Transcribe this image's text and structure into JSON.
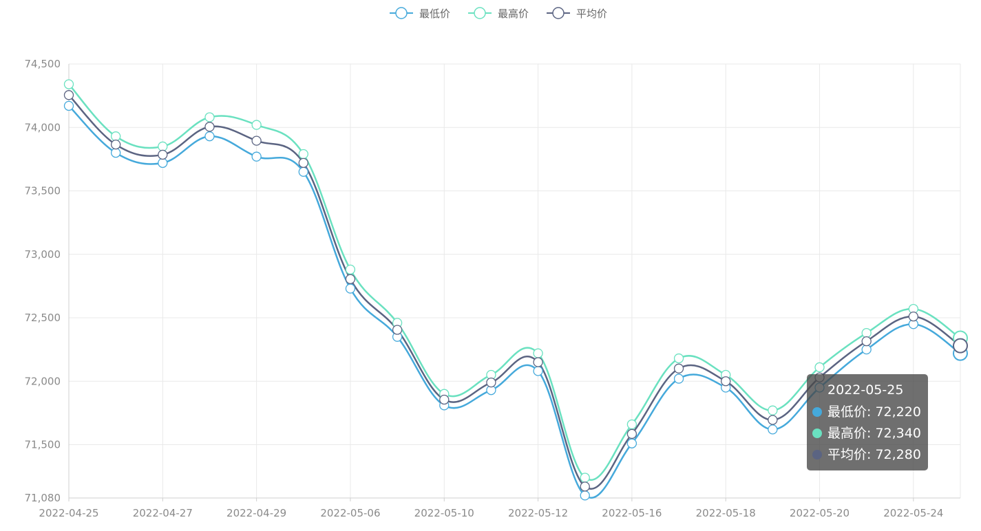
{
  "legend": {
    "items": [
      {
        "label": "最低价",
        "color": "#45a9db"
      },
      {
        "label": "最高价",
        "color": "#6ae1c0"
      },
      {
        "label": "平均价",
        "color": "#5b6482"
      }
    ]
  },
  "tooltip": {
    "date": "2022-05-25",
    "rows": [
      {
        "text": "最低价: 72,220",
        "color": "#45a9db"
      },
      {
        "text": "最高价: 72,340",
        "color": "#6ae1c0"
      },
      {
        "text": "平均价: 72,280",
        "color": "#5b6482"
      }
    ]
  },
  "chart_data": {
    "type": "line",
    "smooth": true,
    "grid": true,
    "legend_position": "top-center",
    "ylim": [
      71080,
      74500
    ],
    "yticks": [
      71080,
      71500,
      72000,
      72500,
      73000,
      73500,
      74000,
      74500
    ],
    "ytick_labels": [
      "71,080",
      "71,500",
      "72,000",
      "72,500",
      "73,000",
      "73,500",
      "74,000",
      "74,500"
    ],
    "x": [
      "2022-04-25",
      "2022-04-26",
      "2022-04-27",
      "2022-04-28",
      "2022-04-29",
      "2022-05-05",
      "2022-05-06",
      "2022-05-09",
      "2022-05-10",
      "2022-05-11",
      "2022-05-12",
      "2022-05-13",
      "2022-05-16",
      "2022-05-17",
      "2022-05-18",
      "2022-05-19",
      "2022-05-20",
      "2022-05-23",
      "2022-05-24",
      "2022-05-25"
    ],
    "xtick_labels_shown": [
      "2022-04-25",
      "2022-04-27",
      "2022-04-29",
      "2022-05-06",
      "2022-05-10",
      "2022-05-12",
      "2022-05-16",
      "2022-05-18",
      "2022-05-20",
      "2022-05-24"
    ],
    "series": [
      {
        "name": "最低价",
        "color": "#45a9db",
        "values": [
          74170,
          73800,
          73720,
          73930,
          73770,
          73650,
          72730,
          72350,
          71810,
          71930,
          72080,
          71100,
          71510,
          72020,
          71950,
          71620,
          71950,
          72250,
          72450,
          72220
        ]
      },
      {
        "name": "最高价",
        "color": "#6ae1c0",
        "values": [
          74340,
          73930,
          73850,
          74080,
          74020,
          73790,
          72880,
          72460,
          71900,
          72050,
          72220,
          71240,
          71660,
          72180,
          72050,
          71770,
          72110,
          72380,
          72570,
          72340
        ]
      },
      {
        "name": "平均价",
        "color": "#5b6482",
        "values": [
          74255,
          73865,
          73785,
          74005,
          73895,
          73720,
          72805,
          72405,
          71855,
          71990,
          72150,
          71170,
          71585,
          72100,
          72000,
          71695,
          72030,
          72315,
          72510,
          72280
        ]
      }
    ],
    "highlighted_index": 19
  }
}
